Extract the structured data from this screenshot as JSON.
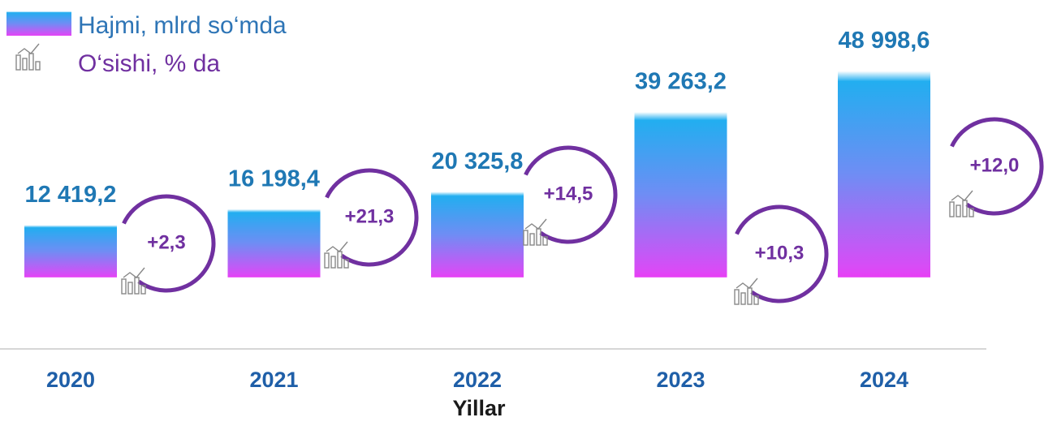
{
  "chart_data": {
    "type": "bar",
    "categories": [
      "2020",
      "2021",
      "2022",
      "2023",
      "2024"
    ],
    "xlabel": "Yillar",
    "ylim": [
      -17000,
      52000
    ],
    "series": [
      {
        "name": "Hajmi, mlrd so‘mda",
        "color": "#22aef0",
        "values": [
          12419.2,
          16198.4,
          20325.8,
          39263.2,
          48998.6
        ],
        "value_labels": [
          "12 419,2",
          "16 198,4",
          "20 325,8",
          "39 263,2",
          "48 998,6"
        ]
      },
      {
        "name": "O‘sishi, % da",
        "color": "#7030a0",
        "values": [
          2.3,
          21.3,
          14.5,
          10.3,
          12.0
        ],
        "value_labels": [
          "+2,3",
          "+21,3",
          "+14,5",
          "+10,3",
          "+12,0"
        ]
      }
    ]
  }
}
